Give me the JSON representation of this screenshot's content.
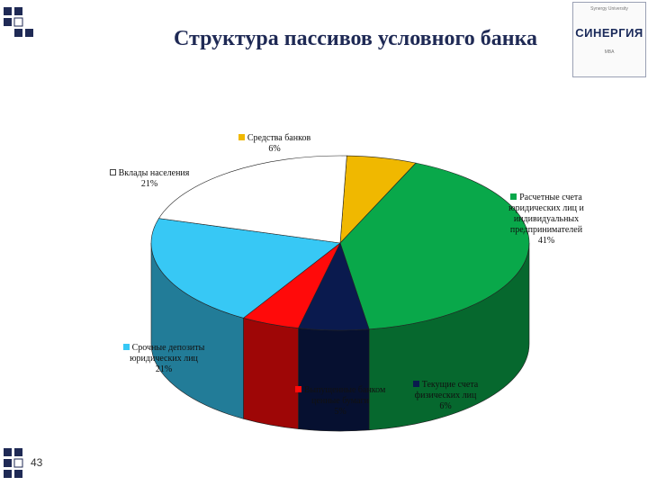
{
  "slide": {
    "title": "Структура пассивов условного банка",
    "page_number": "43",
    "logo": {
      "main_text": "СИНЕРГИЯ",
      "top_text": "Synergy University",
      "bottom_text": "MBA"
    }
  },
  "chart_data": {
    "type": "pie",
    "title": "Структура пассивов условного банка",
    "three_d": true,
    "slices": [
      {
        "label": "Средства банков",
        "value": 6,
        "value_label": "6%",
        "color": "#f0b800"
      },
      {
        "label": "Расчетные счета юридических лиц и индивидуальных предпринимателей",
        "value": 41,
        "value_label": "41%",
        "color": "#09a84a"
      },
      {
        "label": "Текущие счета физических лиц",
        "value": 6,
        "value_label": "6%",
        "color": "#0a1a4e"
      },
      {
        "label": "Выпущенные банком ценные бумаги",
        "value": 5,
        "value_label": "5%",
        "color": "#ff0a0a"
      },
      {
        "label": "Срочные депозиты юридических лиц",
        "value": 21,
        "value_label": "21%",
        "color": "#37c8f5"
      },
      {
        "label": "Вклады населения",
        "value": 21,
        "value_label": "21%",
        "color": "#ffffff"
      }
    ]
  }
}
